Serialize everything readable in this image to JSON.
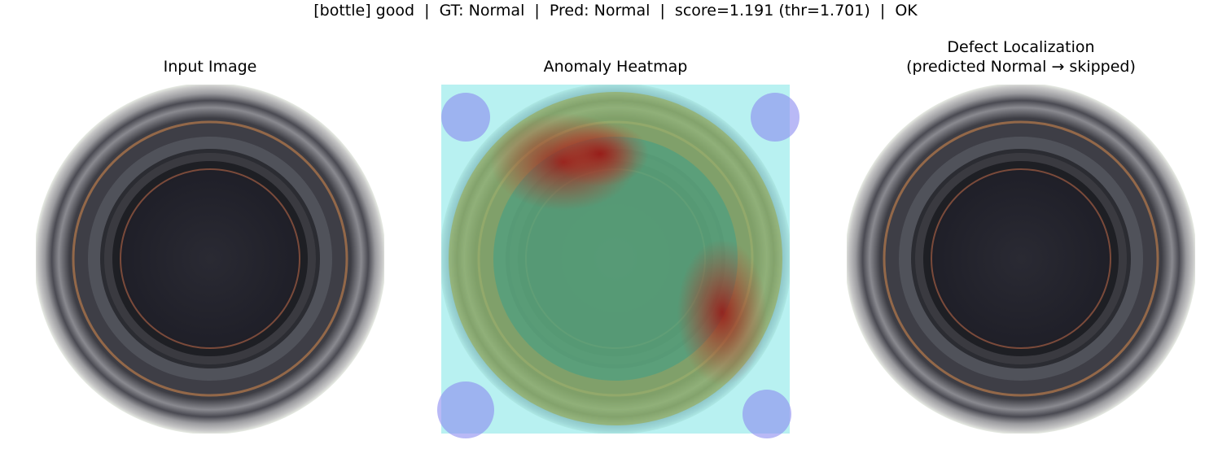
{
  "header": {
    "title": "[bottle] good  |  GT: Normal  |  Pred: Normal  |  score=1.191 (thr=1.701)  |  OK"
  },
  "panels": [
    {
      "title": [
        "Input Image"
      ]
    },
    {
      "title": [
        "Anomaly Heatmap"
      ]
    },
    {
      "title": [
        "Defect Localization",
        "(predicted Normal → skipped)"
      ]
    }
  ]
}
